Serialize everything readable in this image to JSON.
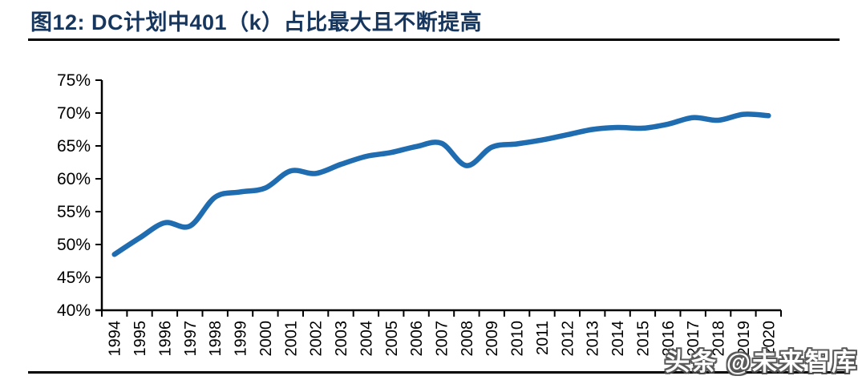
{
  "figure": {
    "title": "图12:  DC计划中401（k）占比最大且不断提高",
    "watermark": "头条 @未来智库"
  },
  "colors": {
    "title": "#17365D",
    "line": "#1F6CB1",
    "axis": "#000000",
    "rule": "#000000",
    "watermark_fill": "#FFFFFF",
    "watermark_outline": "#4D4D4D"
  },
  "chart_data": {
    "type": "line",
    "title": "图12:  DC计划中401（k）占比最大且不断提高",
    "x": [
      1994,
      1995,
      1996,
      1997,
      1998,
      1999,
      2000,
      2001,
      2002,
      2003,
      2004,
      2005,
      2006,
      2007,
      2008,
      2009,
      2010,
      2011,
      2012,
      2013,
      2014,
      2015,
      2016,
      2017,
      2018,
      2019,
      2020
    ],
    "x_labels": [
      "1994",
      "1995",
      "1996",
      "1997",
      "1998",
      "1999",
      "2000",
      "2001",
      "2002",
      "2003",
      "2004",
      "2005",
      "2006",
      "2007",
      "2008",
      "2009",
      "2010",
      "2011",
      "2012",
      "2013",
      "2014",
      "2015",
      "2016",
      "2017",
      "2018",
      "2019",
      "2020"
    ],
    "values": [
      48.5,
      51.0,
      53.3,
      52.8,
      57.2,
      58.0,
      58.6,
      61.2,
      60.8,
      62.2,
      63.4,
      64.0,
      64.9,
      65.4,
      62.0,
      64.8,
      65.3,
      65.9,
      66.7,
      67.5,
      67.8,
      67.7,
      68.3,
      69.3,
      68.9,
      69.8,
      69.6
    ],
    "y_labels": [
      "40%",
      "45%",
      "50%",
      "55%",
      "60%",
      "65%",
      "70%",
      "75%"
    ],
    "ylim": [
      40,
      75
    ],
    "ytick_step": 5,
    "xlabel": "",
    "ylabel": "",
    "grid": false,
    "legend": "none",
    "smooth": true,
    "line_width": 6.5
  }
}
